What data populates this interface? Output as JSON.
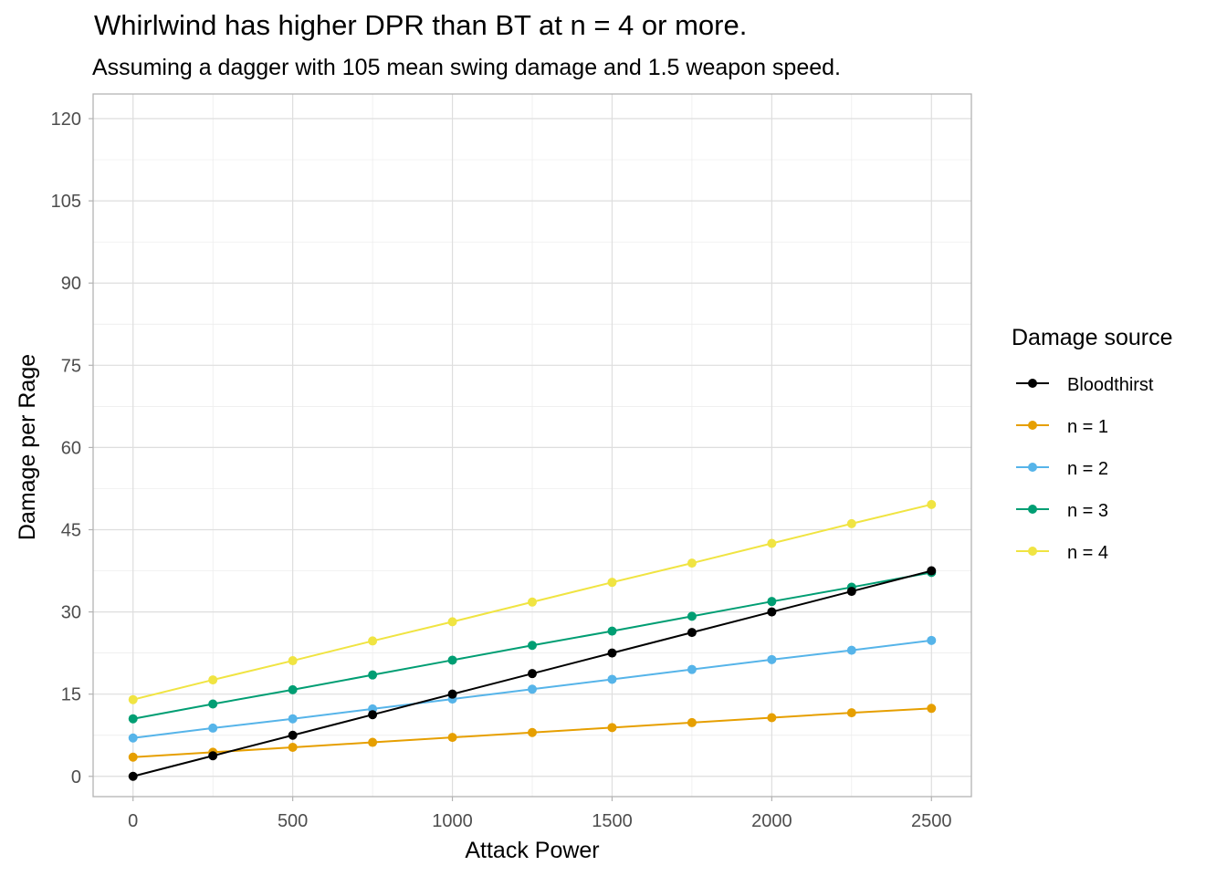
{
  "chart_data": {
    "type": "line",
    "title": "Whirlwind has higher DPR than BT at n = 4 or more.",
    "subtitle": "Assuming a dagger with 105 mean swing damage and 1.5 weapon speed.",
    "xlabel": "Attack Power",
    "ylabel": "Damage per Rage",
    "x": [
      0,
      250,
      500,
      750,
      1000,
      1250,
      1500,
      1750,
      2000,
      2250,
      2500
    ],
    "xlim": [
      -125,
      2625
    ],
    "ylim": [
      -3.7,
      124.5
    ],
    "xticks": [
      0,
      500,
      1000,
      1500,
      2000,
      2500
    ],
    "yticks": [
      0,
      15,
      30,
      45,
      60,
      75,
      90,
      105,
      120
    ],
    "grid": true,
    "legend_title": "Damage source",
    "legend_position": "right",
    "series": [
      {
        "name": "Bloodthirst",
        "color": "#000000",
        "values": [
          0,
          3.75,
          7.5,
          11.25,
          15.0,
          18.75,
          22.5,
          26.25,
          30.0,
          33.75,
          37.5
        ]
      },
      {
        "name": "n = 1",
        "color": "#E69F00",
        "values": [
          3.5,
          4.4,
          5.3,
          6.2,
          7.1,
          8.0,
          8.9,
          9.8,
          10.7,
          11.6,
          12.4
        ]
      },
      {
        "name": "n = 2",
        "color": "#56B4E9",
        "values": [
          7.0,
          8.8,
          10.5,
          12.3,
          14.1,
          15.9,
          17.7,
          19.5,
          21.3,
          23.0,
          24.8
        ]
      },
      {
        "name": "n = 3",
        "color": "#009E73",
        "values": [
          10.5,
          13.2,
          15.8,
          18.5,
          21.2,
          23.9,
          26.5,
          29.2,
          31.9,
          34.5,
          37.2
        ]
      },
      {
        "name": "n = 4",
        "color": "#F0E442",
        "values": [
          14.0,
          17.6,
          21.1,
          24.7,
          28.2,
          31.8,
          35.4,
          38.9,
          42.5,
          46.1,
          49.6
        ]
      }
    ]
  }
}
